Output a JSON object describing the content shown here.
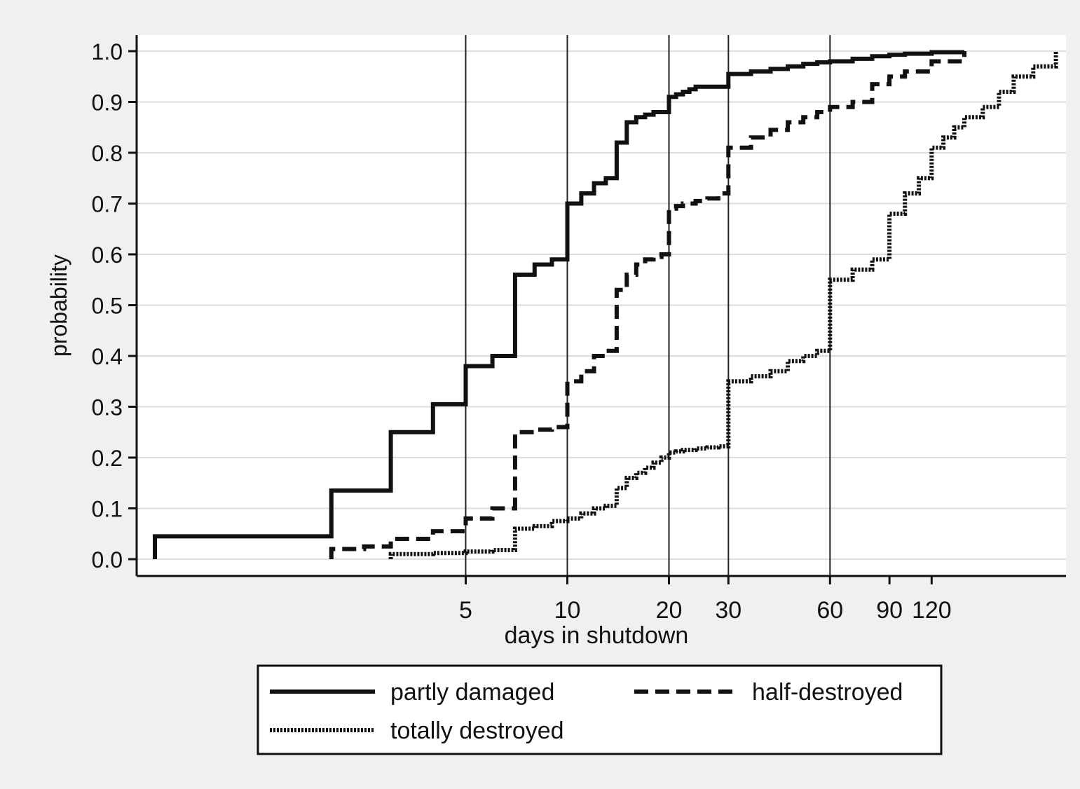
{
  "colors": {
    "background": "#f0f0f0",
    "plot_area": "#ffffff",
    "line": "#111111",
    "grid": "#dddddd"
  },
  "chart_data": {
    "type": "line",
    "title": "",
    "xlabel": "days in shutdown",
    "ylabel": "probability",
    "x_scale": "log",
    "x_ticks": [
      5,
      10,
      20,
      30,
      60,
      90,
      120
    ],
    "x_tick_labels": [
      "5",
      "10",
      "20",
      "30",
      "60",
      "90",
      "120"
    ],
    "xlim": [
      0.53,
      300
    ],
    "ylim": [
      0,
      1
    ],
    "y_ticks": [
      0,
      0.1,
      0.2,
      0.3,
      0.4,
      0.5,
      0.6,
      0.7,
      0.8,
      0.9,
      1.0
    ],
    "y_tick_labels": [
      "0.0",
      "0.1",
      "0.2",
      "0.3",
      "0.4",
      "0.5",
      "0.6",
      "0.7",
      "0.8",
      "0.9",
      "1.0"
    ],
    "vertical_reference_lines": [
      5,
      10,
      20,
      30,
      60
    ],
    "grid": "horizontal",
    "legend_position": "bottom",
    "series": [
      {
        "name": "partly damaged",
        "style": "solid",
        "x": [
          0.6,
          2,
          3,
          4,
          5,
          6,
          7,
          8,
          9,
          10,
          11,
          12,
          13,
          14,
          15,
          16,
          17,
          18,
          19,
          20,
          21,
          22,
          23,
          24,
          25,
          26,
          27,
          28,
          29,
          30,
          35,
          40,
          45,
          50,
          55,
          60,
          70,
          80,
          90,
          100,
          120,
          150
        ],
        "y": [
          0.045,
          0.135,
          0.25,
          0.305,
          0.38,
          0.4,
          0.56,
          0.58,
          0.59,
          0.7,
          0.72,
          0.74,
          0.75,
          0.82,
          0.86,
          0.87,
          0.875,
          0.88,
          0.88,
          0.91,
          0.915,
          0.92,
          0.925,
          0.93,
          0.93,
          0.93,
          0.93,
          0.93,
          0.93,
          0.955,
          0.96,
          0.965,
          0.97,
          0.975,
          0.978,
          0.98,
          0.985,
          0.99,
          0.993,
          0.995,
          0.998,
          1.0
        ]
      },
      {
        "name": "half-destroyed",
        "style": "dashed",
        "x": [
          2,
          2.5,
          3,
          4,
          5,
          6,
          7,
          8,
          9,
          10,
          11,
          12,
          13,
          14,
          15,
          16,
          17,
          18,
          19,
          20,
          21,
          22,
          24,
          26,
          28,
          30,
          35,
          40,
          45,
          50,
          55,
          60,
          70,
          80,
          90,
          100,
          120,
          150
        ],
        "y": [
          0.02,
          0.025,
          0.04,
          0.055,
          0.08,
          0.1,
          0.25,
          0.255,
          0.26,
          0.35,
          0.37,
          0.4,
          0.41,
          0.53,
          0.56,
          0.58,
          0.59,
          0.595,
          0.6,
          0.69,
          0.695,
          0.7,
          0.705,
          0.71,
          0.72,
          0.81,
          0.83,
          0.845,
          0.86,
          0.87,
          0.88,
          0.89,
          0.9,
          0.935,
          0.95,
          0.96,
          0.98,
          1.0
        ]
      },
      {
        "name": "totally destroyed",
        "style": "dotted",
        "x": [
          3,
          4,
          5,
          6,
          7,
          8,
          9,
          10,
          11,
          12,
          13,
          14,
          15,
          16,
          17,
          18,
          19,
          20,
          21,
          22,
          24,
          26,
          28,
          30,
          35,
          40,
          45,
          50,
          55,
          60,
          70,
          80,
          90,
          100,
          110,
          120,
          130,
          140,
          150,
          170,
          190,
          210,
          240,
          280
        ],
        "y": [
          0.01,
          0.012,
          0.015,
          0.018,
          0.06,
          0.065,
          0.075,
          0.08,
          0.09,
          0.1,
          0.105,
          0.14,
          0.16,
          0.17,
          0.18,
          0.19,
          0.2,
          0.21,
          0.212,
          0.215,
          0.218,
          0.22,
          0.222,
          0.35,
          0.36,
          0.37,
          0.39,
          0.4,
          0.41,
          0.55,
          0.57,
          0.59,
          0.68,
          0.72,
          0.75,
          0.81,
          0.83,
          0.85,
          0.87,
          0.89,
          0.92,
          0.95,
          0.97,
          1.0
        ]
      }
    ]
  }
}
